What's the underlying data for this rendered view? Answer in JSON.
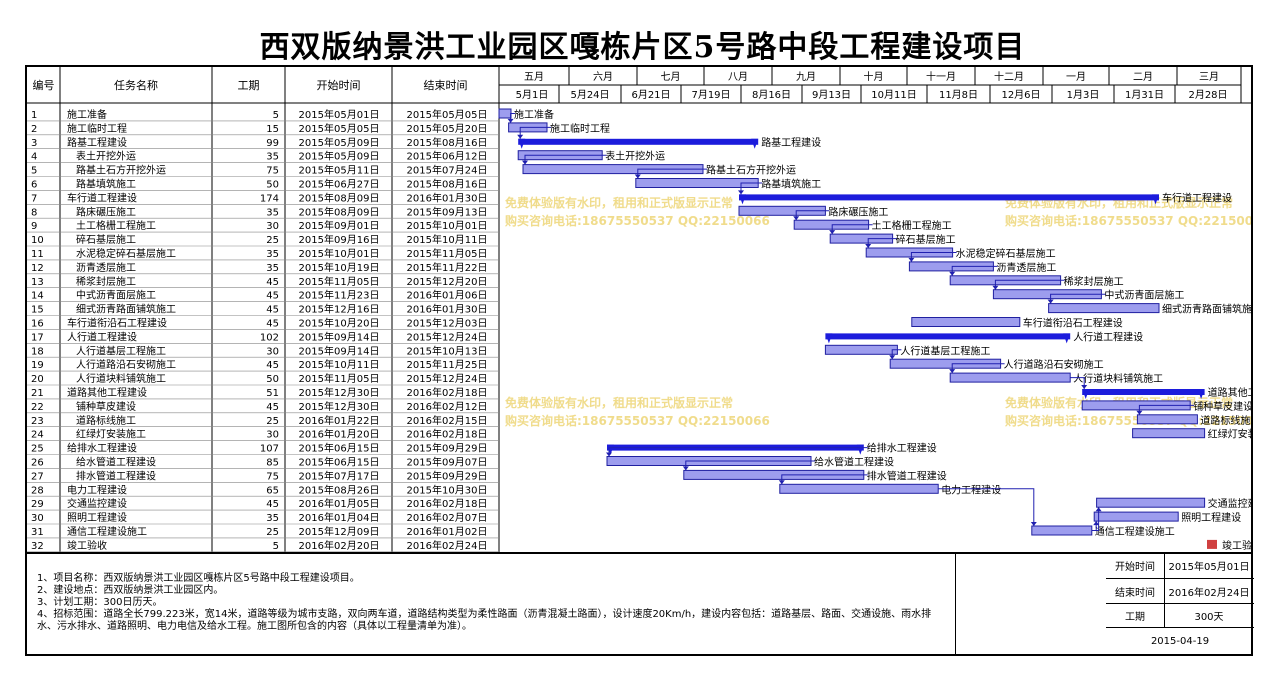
{
  "title": "西双版纳景洪工业园区嘎栋片区5号路中段工程建设项目",
  "table_headers": {
    "id": "编号",
    "task": "任务名称",
    "duration": "工期",
    "start": "开始时间",
    "end": "结束时间"
  },
  "months": [
    "五月",
    "六月",
    "七月",
    "八月",
    "九月",
    "十月",
    "十一月",
    "十二月",
    "一月",
    "二月",
    "三月"
  ],
  "weeks": [
    "5月1日",
    "5月24日",
    "6月21日",
    "7月19日",
    "8月16日",
    "9月13日",
    "10月11日",
    "11月8日",
    "12月6日",
    "1月3日",
    "1月31日",
    "2月28日"
  ],
  "watermark_lines": [
    "免费体验版有水印，租用和正式版显示正常",
    "购买咨询电话:18675550537 QQ:22150066"
  ],
  "milestone_label": "竣工验收",
  "tasks": [
    {
      "id": "1",
      "name": "施工准备",
      "level": 0,
      "summary": false,
      "duration": "5",
      "start": "2015年05月01日",
      "end": "2015年05月05日"
    },
    {
      "id": "2",
      "name": "施工临时工程",
      "level": 0,
      "summary": false,
      "duration": "15",
      "start": "2015年05月05日",
      "end": "2015年05月20日"
    },
    {
      "id": "3",
      "name": "路基工程建设",
      "level": 0,
      "summary": true,
      "duration": "99",
      "start": "2015年05月09日",
      "end": "2015年08月16日"
    },
    {
      "id": "4",
      "name": "表土开挖外运",
      "level": 1,
      "summary": false,
      "duration": "35",
      "start": "2015年05月09日",
      "end": "2015年06月12日"
    },
    {
      "id": "5",
      "name": "路基土石方开挖外运",
      "level": 1,
      "summary": false,
      "duration": "75",
      "start": "2015年05月11日",
      "end": "2015年07月24日"
    },
    {
      "id": "6",
      "name": "路基填筑施工",
      "level": 1,
      "summary": false,
      "duration": "50",
      "start": "2015年06月27日",
      "end": "2015年08月16日"
    },
    {
      "id": "7",
      "name": "车行道工程建设",
      "level": 0,
      "summary": true,
      "duration": "174",
      "start": "2015年08月09日",
      "end": "2016年01月30日"
    },
    {
      "id": "8",
      "name": "路床碾压施工",
      "level": 1,
      "summary": false,
      "duration": "35",
      "start": "2015年08月09日",
      "end": "2015年09月13日"
    },
    {
      "id": "9",
      "name": "土工格栅工程施工",
      "level": 1,
      "summary": false,
      "duration": "30",
      "start": "2015年09月01日",
      "end": "2015年10月01日"
    },
    {
      "id": "10",
      "name": "碎石基层施工",
      "level": 1,
      "summary": false,
      "duration": "25",
      "start": "2015年09月16日",
      "end": "2015年10月11日"
    },
    {
      "id": "11",
      "name": "水泥稳定碎石基层施工",
      "level": 1,
      "summary": false,
      "duration": "35",
      "start": "2015年10月01日",
      "end": "2015年11月05日"
    },
    {
      "id": "12",
      "name": "沥青透层施工",
      "level": 1,
      "summary": false,
      "duration": "35",
      "start": "2015年10月19日",
      "end": "2015年11月22日"
    },
    {
      "id": "13",
      "name": "稀浆封层施工",
      "level": 1,
      "summary": false,
      "duration": "45",
      "start": "2015年11月05日",
      "end": "2015年12月20日"
    },
    {
      "id": "14",
      "name": "中式沥青面层施工",
      "level": 1,
      "summary": false,
      "duration": "45",
      "start": "2015年11月23日",
      "end": "2016年01月06日"
    },
    {
      "id": "15",
      "name": "细式沥青路面铺筑施工",
      "level": 1,
      "summary": false,
      "duration": "45",
      "start": "2015年12月16日",
      "end": "2016年01月30日"
    },
    {
      "id": "16",
      "name": "车行道衔沿石工程建设",
      "level": 0,
      "summary": false,
      "duration": "45",
      "start": "2015年10月20日",
      "end": "2015年12月03日"
    },
    {
      "id": "17",
      "name": "人行道工程建设",
      "level": 0,
      "summary": true,
      "duration": "102",
      "start": "2015年09月14日",
      "end": "2015年12月24日"
    },
    {
      "id": "18",
      "name": "人行道基层工程施工",
      "level": 1,
      "summary": false,
      "duration": "30",
      "start": "2015年09月14日",
      "end": "2015年10月13日"
    },
    {
      "id": "19",
      "name": "人行道路沿石安砌施工",
      "level": 1,
      "summary": false,
      "duration": "45",
      "start": "2015年10月11日",
      "end": "2015年11月25日"
    },
    {
      "id": "20",
      "name": "人行道块料铺筑施工",
      "level": 1,
      "summary": false,
      "duration": "50",
      "start": "2015年11月05日",
      "end": "2015年12月24日"
    },
    {
      "id": "21",
      "name": "道路其他工程建设",
      "level": 0,
      "summary": true,
      "duration": "51",
      "start": "2015年12月30日",
      "end": "2016年02月18日"
    },
    {
      "id": "22",
      "name": "铺种草皮建设",
      "level": 1,
      "summary": false,
      "duration": "45",
      "start": "2015年12月30日",
      "end": "2016年02月12日"
    },
    {
      "id": "23",
      "name": "道路标线施工",
      "level": 1,
      "summary": false,
      "duration": "25",
      "start": "2016年01月22日",
      "end": "2016年02月15日"
    },
    {
      "id": "24",
      "name": "红绿灯安装施工",
      "level": 1,
      "summary": false,
      "duration": "30",
      "start": "2016年01月20日",
      "end": "2016年02月18日"
    },
    {
      "id": "25",
      "name": "给排水工程建设",
      "level": 0,
      "summary": true,
      "duration": "107",
      "start": "2015年06月15日",
      "end": "2015年09月29日"
    },
    {
      "id": "26",
      "name": "给水管道工程建设",
      "level": 1,
      "summary": false,
      "duration": "85",
      "start": "2015年06月15日",
      "end": "2015年09月07日"
    },
    {
      "id": "27",
      "name": "排水管道工程建设",
      "level": 1,
      "summary": false,
      "duration": "75",
      "start": "2015年07月17日",
      "end": "2015年09月29日"
    },
    {
      "id": "28",
      "name": "电力工程建设",
      "level": 0,
      "summary": false,
      "duration": "65",
      "start": "2015年08月26日",
      "end": "2015年10月30日"
    },
    {
      "id": "29",
      "name": "交通监控建设",
      "level": 0,
      "summary": false,
      "duration": "45",
      "start": "2016年01月05日",
      "end": "2016年02月18日"
    },
    {
      "id": "30",
      "name": "照明工程建设",
      "level": 0,
      "summary": false,
      "duration": "35",
      "start": "2016年01月04日",
      "end": "2016年02月07日"
    },
    {
      "id": "31",
      "name": "通信工程建设施工",
      "level": 0,
      "summary": false,
      "duration": "25",
      "start": "2015年12月09日",
      "end": "2016年01月02日"
    },
    {
      "id": "32",
      "name": "竣工验收",
      "level": 0,
      "summary": false,
      "duration": "5",
      "start": "2016年02月20日",
      "end": "2016年02月24日"
    }
  ],
  "notes": [
    "1、项目名称：西双版纳景洪工业园区嘎栋片区5号路中段工程建设项目。",
    "2、建设地点：西双版纳景洪工业园区内。",
    "3、计划工期：300日历天。",
    "4、招标范围：道路全长799.223米，宽14米，道路等级为城市支路，双向两车道，道路结构类型为柔性路面（沥青混凝土路面），设计速度20Km/h，建设内容包括：道路基层、路面、交通设施、雨水排水、污水排水、道路照明、电力电信及给水工程。施工图所包含的内容（具体以工程量清单为准）。"
  ],
  "summary": {
    "start_label": "开始时间",
    "start_value": "2015年05月01日",
    "end_label": "结束时间",
    "end_value": "2016年02月24日",
    "duration_label": "工期",
    "duration_value": "300天",
    "date": "2015-04-19"
  },
  "colors": {
    "bar_fill": "#9d9dee",
    "bar_border": "#2020a0",
    "summary_bar": "#1c1cdc",
    "link": "#2020b0",
    "milestone": "#d04040",
    "watermark": "#f0dc8c"
  },
  "chart_data": {
    "type": "gantt",
    "title": "西双版纳景洪工业园区嘎栋片区5号路中段工程建设项目",
    "x_range": [
      "2015-05-01",
      "2016-03-23"
    ],
    "tasks": [
      {
        "id": 1,
        "start": "2015-05-01",
        "end": "2015-05-05"
      },
      {
        "id": 2,
        "start": "2015-05-05",
        "end": "2015-05-20"
      },
      {
        "id": 3,
        "start": "2015-05-09",
        "end": "2015-08-16"
      },
      {
        "id": 4,
        "start": "2015-05-09",
        "end": "2015-06-12"
      },
      {
        "id": 5,
        "start": "2015-05-11",
        "end": "2015-07-24"
      },
      {
        "id": 6,
        "start": "2015-06-27",
        "end": "2015-08-16"
      },
      {
        "id": 7,
        "start": "2015-08-09",
        "end": "2016-01-30"
      },
      {
        "id": 8,
        "start": "2015-08-09",
        "end": "2015-09-13"
      },
      {
        "id": 9,
        "start": "2015-09-01",
        "end": "2015-10-01"
      },
      {
        "id": 10,
        "start": "2015-09-16",
        "end": "2015-10-11"
      },
      {
        "id": 11,
        "start": "2015-10-01",
        "end": "2015-11-05"
      },
      {
        "id": 12,
        "start": "2015-10-19",
        "end": "2015-11-22"
      },
      {
        "id": 13,
        "start": "2015-11-05",
        "end": "2015-12-20"
      },
      {
        "id": 14,
        "start": "2015-11-23",
        "end": "2016-01-06"
      },
      {
        "id": 15,
        "start": "2015-12-16",
        "end": "2016-01-30"
      },
      {
        "id": 16,
        "start": "2015-10-20",
        "end": "2015-12-03"
      },
      {
        "id": 17,
        "start": "2015-09-14",
        "end": "2015-12-24"
      },
      {
        "id": 18,
        "start": "2015-09-14",
        "end": "2015-10-13"
      },
      {
        "id": 19,
        "start": "2015-10-11",
        "end": "2015-11-25"
      },
      {
        "id": 20,
        "start": "2015-11-05",
        "end": "2015-12-24"
      },
      {
        "id": 21,
        "start": "2015-12-30",
        "end": "2016-02-18"
      },
      {
        "id": 22,
        "start": "2015-12-30",
        "end": "2016-02-12"
      },
      {
        "id": 23,
        "start": "2016-01-22",
        "end": "2016-02-15"
      },
      {
        "id": 24,
        "start": "2016-01-20",
        "end": "2016-02-18"
      },
      {
        "id": 25,
        "start": "2015-06-15",
        "end": "2015-09-29"
      },
      {
        "id": 26,
        "start": "2015-06-15",
        "end": "2015-09-07"
      },
      {
        "id": 27,
        "start": "2015-07-17",
        "end": "2015-09-29"
      },
      {
        "id": 28,
        "start": "2015-08-26",
        "end": "2015-10-30"
      },
      {
        "id": 29,
        "start": "2016-01-05",
        "end": "2016-02-18"
      },
      {
        "id": 30,
        "start": "2016-01-04",
        "end": "2016-02-07"
      },
      {
        "id": 31,
        "start": "2015-12-09",
        "end": "2016-01-02"
      },
      {
        "id": 32,
        "start": "2016-02-20",
        "end": "2016-02-24"
      }
    ],
    "links": [
      [
        1,
        2
      ],
      [
        2,
        3
      ],
      [
        4,
        5
      ],
      [
        5,
        6
      ],
      [
        6,
        7
      ],
      [
        8,
        9
      ],
      [
        9,
        10
      ],
      [
        10,
        11
      ],
      [
        11,
        12
      ],
      [
        12,
        13
      ],
      [
        13,
        14
      ],
      [
        14,
        15
      ],
      [
        18,
        19
      ],
      [
        19,
        20
      ],
      [
        20,
        21
      ],
      [
        22,
        23
      ],
      [
        25,
        26
      ],
      [
        26,
        27
      ],
      [
        27,
        28
      ],
      [
        28,
        31
      ],
      [
        31,
        30
      ],
      [
        31,
        29
      ]
    ]
  }
}
